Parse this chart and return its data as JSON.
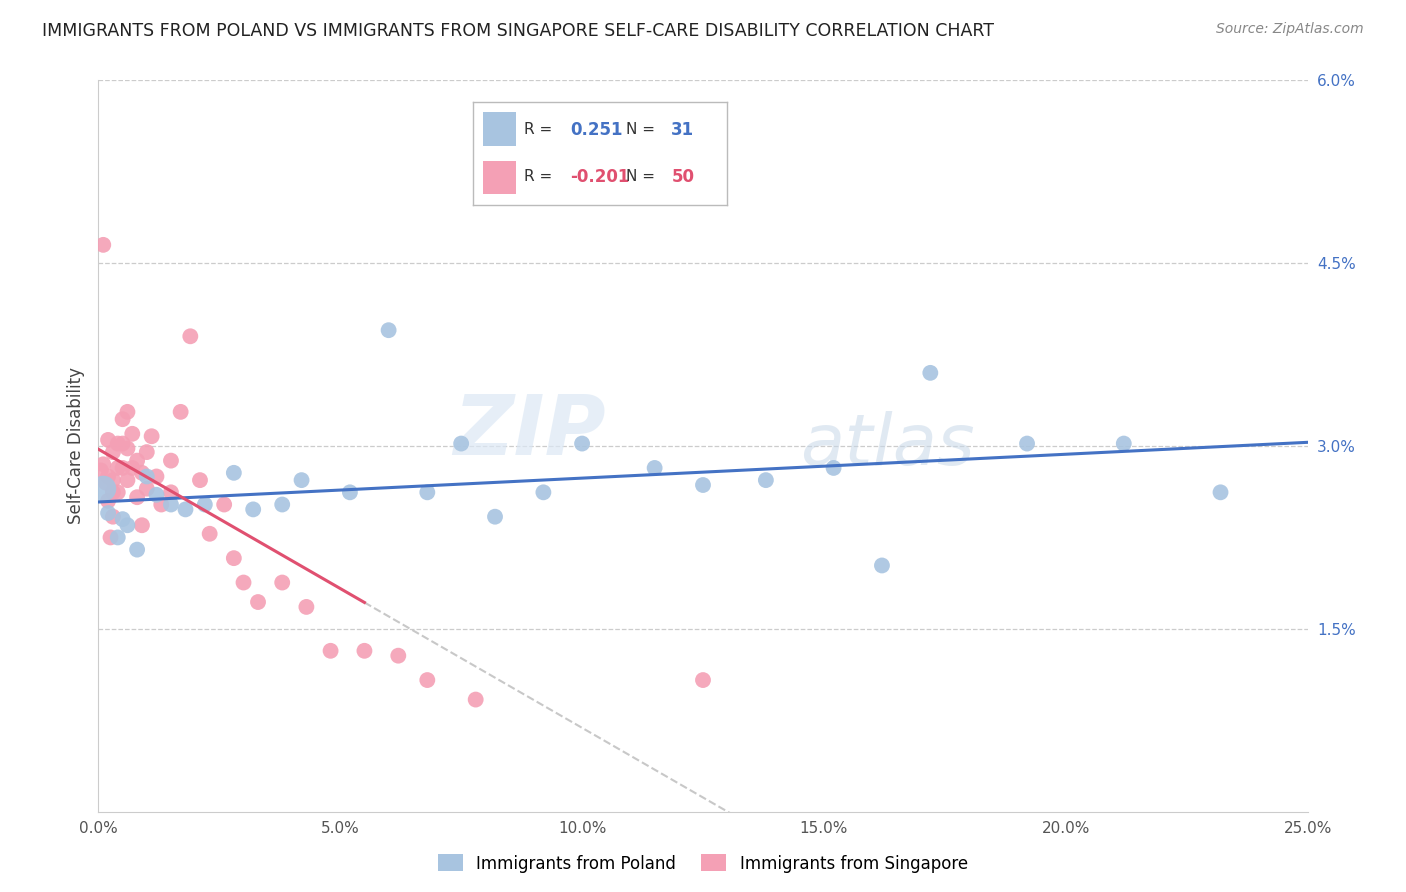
{
  "title": "IMMIGRANTS FROM POLAND VS IMMIGRANTS FROM SINGAPORE SELF-CARE DISABILITY CORRELATION CHART",
  "source": "Source: ZipAtlas.com",
  "ylabel": "Self-Care Disability",
  "legend_label_1": "Immigrants from Poland",
  "legend_label_2": "Immigrants from Singapore",
  "R1": 0.251,
  "N1": 31,
  "R2": -0.201,
  "N2": 50,
  "color_poland": "#a8c4e0",
  "color_singapore": "#f4a0b5",
  "line_color_poland": "#4472c4",
  "line_color_singapore": "#e05070",
  "watermark_zip": "ZIP",
  "watermark_atlas": "atlas",
  "xlim": [
    0.0,
    0.25
  ],
  "ylim": [
    0.0,
    0.06
  ],
  "poland_x": [
    0.001,
    0.002,
    0.004,
    0.005,
    0.006,
    0.008,
    0.01,
    0.012,
    0.015,
    0.018,
    0.022,
    0.028,
    0.032,
    0.038,
    0.042,
    0.052,
    0.06,
    0.068,
    0.075,
    0.082,
    0.092,
    0.1,
    0.115,
    0.125,
    0.138,
    0.152,
    0.162,
    0.172,
    0.192,
    0.212,
    0.232
  ],
  "poland_y": [
    0.0265,
    0.0245,
    0.0225,
    0.024,
    0.0235,
    0.0215,
    0.0275,
    0.026,
    0.0252,
    0.0248,
    0.0252,
    0.0278,
    0.0248,
    0.0252,
    0.0272,
    0.0262,
    0.0395,
    0.0262,
    0.0302,
    0.0242,
    0.0262,
    0.0302,
    0.0282,
    0.0268,
    0.0272,
    0.0282,
    0.0202,
    0.036,
    0.0302,
    0.0302,
    0.0262
  ],
  "singapore_x": [
    0.0005,
    0.001,
    0.001,
    0.0015,
    0.002,
    0.002,
    0.002,
    0.0025,
    0.003,
    0.003,
    0.003,
    0.003,
    0.004,
    0.004,
    0.004,
    0.005,
    0.005,
    0.005,
    0.006,
    0.006,
    0.006,
    0.007,
    0.007,
    0.008,
    0.008,
    0.009,
    0.009,
    0.01,
    0.01,
    0.011,
    0.012,
    0.013,
    0.015,
    0.015,
    0.017,
    0.019,
    0.021,
    0.023,
    0.026,
    0.028,
    0.03,
    0.033,
    0.038,
    0.043,
    0.048,
    0.055,
    0.062,
    0.068,
    0.078,
    0.125
  ],
  "singapore_y": [
    0.028,
    0.0465,
    0.0285,
    0.027,
    0.0305,
    0.0275,
    0.0255,
    0.0225,
    0.0295,
    0.0272,
    0.0262,
    0.0242,
    0.0302,
    0.0282,
    0.0262,
    0.0322,
    0.0302,
    0.0282,
    0.0328,
    0.0298,
    0.0272,
    0.031,
    0.0282,
    0.0288,
    0.0258,
    0.0278,
    0.0235,
    0.0295,
    0.0265,
    0.0308,
    0.0275,
    0.0252,
    0.0288,
    0.0262,
    0.0328,
    0.039,
    0.0272,
    0.0228,
    0.0252,
    0.0208,
    0.0188,
    0.0172,
    0.0188,
    0.0168,
    0.0132,
    0.0132,
    0.0128,
    0.0108,
    0.0092,
    0.0108
  ]
}
